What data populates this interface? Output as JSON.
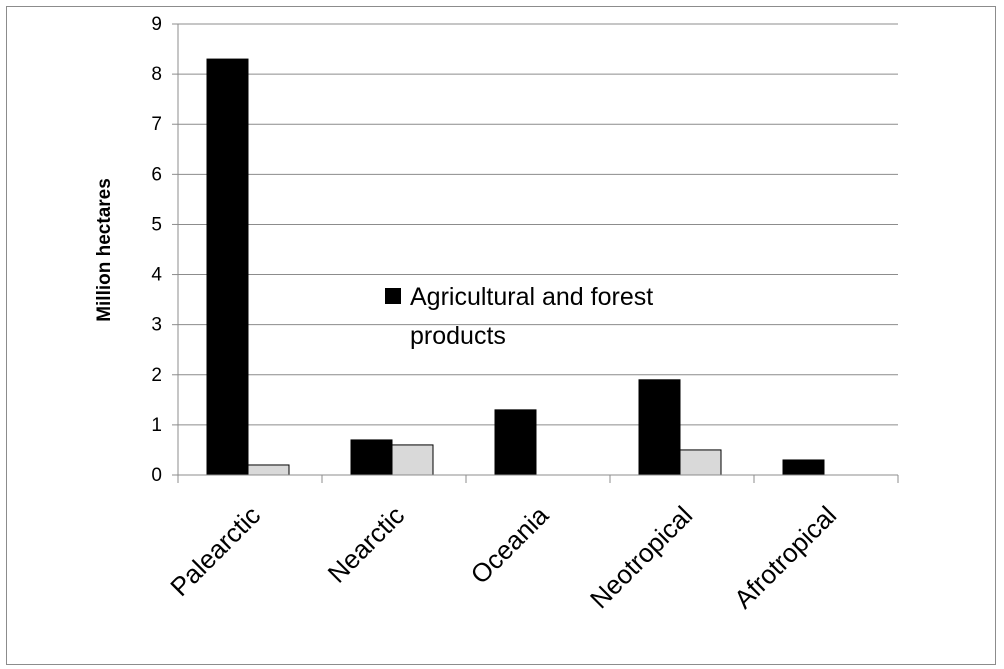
{
  "chart_data": {
    "type": "bar",
    "categories": [
      "Palearctic",
      "Nearctic",
      "Oceania",
      "Neotropical",
      "Afrotropical"
    ],
    "series": [
      {
        "name": "Agricultural and forest products",
        "values": [
          8.3,
          0.7,
          1.3,
          1.9,
          0.3
        ],
        "color": "#000000"
      },
      {
        "values": [
          0.2,
          0.6,
          0,
          0.5,
          0
        ],
        "color": "#d9d9d9"
      }
    ],
    "title": "",
    "xlabel": "",
    "ylabel": "Million hectares",
    "ylim": [
      0,
      9
    ],
    "yticks": [
      0,
      1,
      2,
      3,
      4,
      5,
      6,
      7,
      8,
      9
    ],
    "grid": true,
    "legend_position": "center",
    "legend_lines": [
      "Agricultural and forest",
      "products"
    ]
  }
}
